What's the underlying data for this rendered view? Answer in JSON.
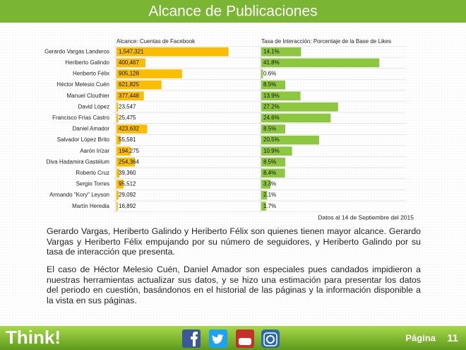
{
  "header": {
    "title": "Alcance de Publicaciones"
  },
  "chart_data": [
    {
      "type": "hbar",
      "title": "Alcance: Cuentas de Facebook",
      "color": "#fbbd00",
      "categories": [
        "Gerardo Vargas Landeros",
        "Heriberto Galindo",
        "Heriberto Félix",
        "Héctor Melesio Cuén",
        "Manuel Clouthier",
        "David López",
        "Francisco Frías Castro",
        "Daniel Amador",
        "Salvador López Brito",
        "Aarón Irízar",
        "Diva Hadamira Gastélum",
        "Roberto Cruz",
        "Sergio Torres",
        "Armando \"Kory\" Leyson",
        "Martín Heredia"
      ],
      "values": [
        1547321,
        400467,
        905128,
        621825,
        377448,
        23547,
        25475,
        423632,
        55581,
        194275,
        254364,
        39360,
        95512,
        29092,
        16892
      ],
      "value_labels": [
        "1,547,321",
        "400,467",
        "905,128",
        "621,825",
        "377,448",
        "23,547",
        "25,475",
        "423,632",
        "55,581",
        "194,275",
        "254,364",
        "39,360",
        "95,512",
        "29,092",
        "16,892"
      ],
      "xlim": [
        0,
        1950000
      ]
    },
    {
      "type": "hbar",
      "title": "Tasa de Interacción: Porcentaje de la Base de Likes",
      "color": "#8dc63f",
      "values": [
        14.1,
        41.8,
        0.6,
        8.5,
        13.9,
        27.2,
        24.6,
        8.5,
        20.5,
        10.9,
        8.5,
        8.4,
        3.3,
        2.1,
        1.7
      ],
      "value_labels": [
        "14.1%",
        "41.8%",
        "0.6%",
        "8.5%",
        "13.9%",
        "27.2%",
        "24.6%",
        "8.5%",
        "20.5%",
        "10.9%",
        "8.5%",
        "8.4%",
        "3.3%",
        "2.1%",
        "1.7%"
      ],
      "xlim": [
        0,
        50
      ]
    }
  ],
  "note": "Datos al 14  de Septiembre del 2015",
  "paragraphs": [
    "Gerardo Vargas, Heriberto Galindo y Heriberto Félix son quienes tienen mayor alcance. Gerardo Vargas y Heriberto Félix empujando por su número de seguidores, y Heriberto Galindo por su tasa de interacción que presenta.",
    "El caso de Héctor Melesio Cuén, Daniel Amador son especiales pues candados impidieron a nuestras herramientas actualizar sus datos, y se hizo una estimación para presentar los datos del periodo en cuestión, basándonos en el historial de las páginas y la información disponible a la vista en sus páginas."
  ],
  "footer": {
    "brand": "Think!",
    "page_label": "Página",
    "page_number": "11"
  }
}
